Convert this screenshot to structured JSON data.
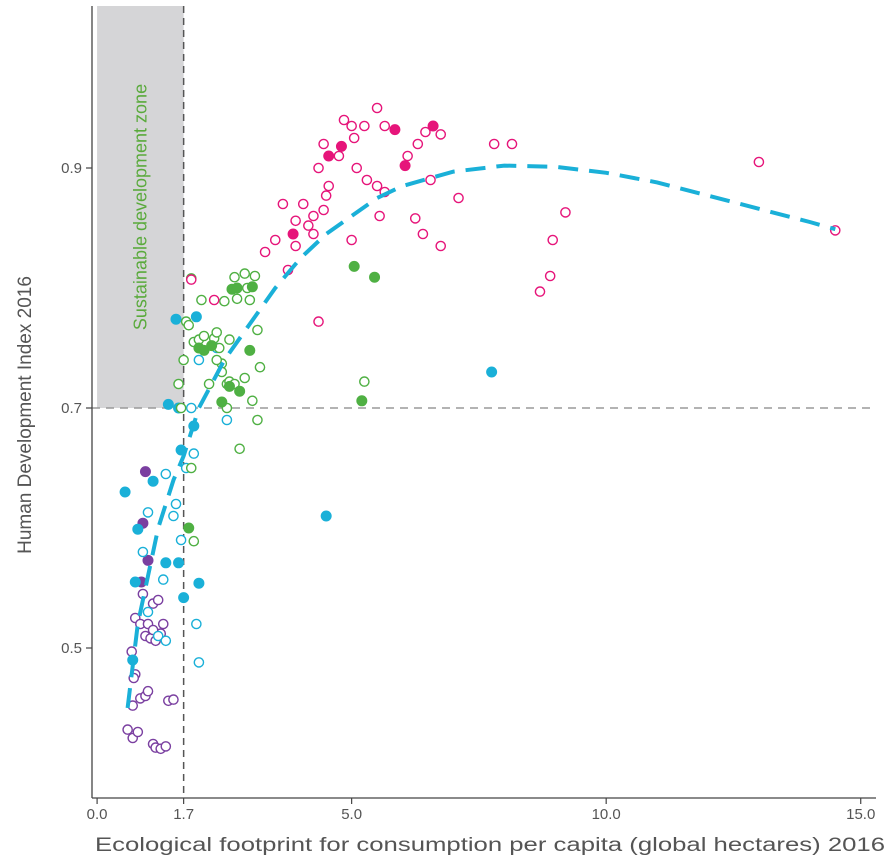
{
  "chart_data": {
    "type": "scatter",
    "title": "",
    "xlabel": "Ecological footprint for consumption per capita (global hectares) 2016",
    "ylabel": "Human Development Index 2016",
    "xlim": [
      -0.1,
      15.3
    ],
    "ylim": [
      0.375,
      1.035
    ],
    "x_ticks": [
      0.0,
      1.7,
      5.0,
      10.0,
      15.0
    ],
    "x_tick_labels": [
      "0.0",
      "1.7",
      "5.0",
      "10.0",
      "15.0"
    ],
    "y_ticks": [
      0.5,
      0.7,
      0.9
    ],
    "y_tick_labels": [
      "0.5",
      "0.7",
      "0.9"
    ],
    "grid": false,
    "legend": "none",
    "annotations": {
      "zone_label": "Sustainable development zone",
      "zone": {
        "x": [
          0.0,
          1.7
        ],
        "y": [
          0.7,
          1.035
        ]
      },
      "threshold_lines": {
        "x": 1.7,
        "y": 0.7
      }
    },
    "colors": {
      "purple": "#7a3fa0",
      "cyan": "#1ab0d8",
      "green": "#4fb043",
      "magenta": "#e6157a",
      "trend": "#1ab0d8",
      "zone_fill": "#d5d5d7",
      "zone_text": "#5aaa3c",
      "reference": "#9a9a9a",
      "axis": "#444444",
      "text": "#555555"
    },
    "series": [
      {
        "color": "purple",
        "filled": [
          [
            1.0,
            0.573
          ],
          [
            0.95,
            0.647
          ],
          [
            0.87,
            0.555
          ],
          [
            0.9,
            0.604
          ]
        ],
        "hollow": [
          [
            0.6,
            0.432
          ],
          [
            0.7,
            0.425
          ],
          [
            0.75,
            0.478
          ],
          [
            0.8,
            0.43
          ],
          [
            0.7,
            0.452
          ],
          [
            0.85,
            0.458
          ],
          [
            0.95,
            0.46
          ],
          [
            1.0,
            0.464
          ],
          [
            1.1,
            0.42
          ],
          [
            1.15,
            0.417
          ],
          [
            1.25,
            0.416
          ],
          [
            1.35,
            0.418
          ],
          [
            1.4,
            0.456
          ],
          [
            1.5,
            0.457
          ],
          [
            0.75,
            0.525
          ],
          [
            0.85,
            0.52
          ],
          [
            0.95,
            0.51
          ],
          [
            1.05,
            0.508
          ],
          [
            1.15,
            0.506
          ],
          [
            1.25,
            0.512
          ],
          [
            1.0,
            0.52
          ],
          [
            1.1,
            0.537
          ],
          [
            1.2,
            0.54
          ],
          [
            0.7,
            0.49
          ],
          [
            0.72,
            0.475
          ],
          [
            0.9,
            0.545
          ],
          [
            1.3,
            0.52
          ],
          [
            1.1,
            0.515
          ],
          [
            0.68,
            0.497
          ]
        ]
      },
      {
        "color": "cyan",
        "filled": [
          [
            0.55,
            0.63
          ],
          [
            0.75,
            0.555
          ],
          [
            0.8,
            0.599
          ],
          [
            1.1,
            0.639
          ],
          [
            1.35,
            0.571
          ],
          [
            1.6,
            0.571
          ],
          [
            1.7,
            0.542
          ],
          [
            2.0,
            0.554
          ],
          [
            1.4,
            0.703
          ],
          [
            1.6,
            0.7
          ],
          [
            1.9,
            0.685
          ],
          [
            1.55,
            0.774
          ],
          [
            1.95,
            0.776
          ],
          [
            1.65,
            0.665
          ],
          [
            4.5,
            0.61
          ],
          [
            7.75,
            0.73
          ],
          [
            0.7,
            0.49
          ]
        ],
        "hollow": [
          [
            0.9,
            0.58
          ],
          [
            1.0,
            0.613
          ],
          [
            1.3,
            0.557
          ],
          [
            1.35,
            0.645
          ],
          [
            1.55,
            0.62
          ],
          [
            1.65,
            0.59
          ],
          [
            1.75,
            0.65
          ],
          [
            1.85,
            0.7
          ],
          [
            1.9,
            0.662
          ],
          [
            2.0,
            0.74
          ],
          [
            2.35,
            0.75
          ],
          [
            1.95,
            0.52
          ],
          [
            2.0,
            0.488
          ],
          [
            2.55,
            0.69
          ],
          [
            1.2,
            0.51
          ],
          [
            1.35,
            0.506
          ],
          [
            1.0,
            0.53
          ],
          [
            1.5,
            0.61
          ]
        ]
      },
      {
        "color": "green",
        "filled": [
          [
            2.0,
            0.75
          ],
          [
            2.1,
            0.748
          ],
          [
            2.25,
            0.752
          ],
          [
            2.6,
            0.718
          ],
          [
            2.45,
            0.705
          ],
          [
            2.8,
            0.714
          ],
          [
            3.0,
            0.748
          ],
          [
            2.65,
            0.799
          ],
          [
            2.75,
            0.8
          ],
          [
            3.05,
            0.801
          ],
          [
            5.2,
            0.706
          ],
          [
            5.05,
            0.818
          ],
          [
            5.45,
            0.809
          ],
          [
            1.8,
            0.6
          ]
        ],
        "hollow": [
          [
            1.6,
            0.72
          ],
          [
            1.7,
            0.74
          ],
          [
            1.75,
            0.772
          ],
          [
            1.8,
            0.769
          ],
          [
            1.85,
            0.808
          ],
          [
            2.05,
            0.79
          ],
          [
            1.9,
            0.755
          ],
          [
            2.0,
            0.757
          ],
          [
            2.1,
            0.76
          ],
          [
            2.3,
            0.758
          ],
          [
            2.35,
            0.763
          ],
          [
            2.4,
            0.75
          ],
          [
            2.45,
            0.737
          ],
          [
            2.5,
            0.789
          ],
          [
            2.6,
            0.757
          ],
          [
            2.7,
            0.809
          ],
          [
            2.75,
            0.791
          ],
          [
            2.9,
            0.812
          ],
          [
            2.95,
            0.8
          ],
          [
            3.0,
            0.79
          ],
          [
            3.1,
            0.81
          ],
          [
            3.15,
            0.765
          ],
          [
            3.2,
            0.734
          ],
          [
            2.55,
            0.72
          ],
          [
            2.6,
            0.722
          ],
          [
            2.7,
            0.72
          ],
          [
            2.9,
            0.725
          ],
          [
            3.05,
            0.706
          ],
          [
            3.15,
            0.69
          ],
          [
            2.8,
            0.666
          ],
          [
            5.25,
            0.722
          ],
          [
            1.9,
            0.589
          ],
          [
            1.85,
            0.65
          ],
          [
            1.65,
            0.7
          ],
          [
            2.35,
            0.74
          ],
          [
            2.2,
            0.72
          ],
          [
            2.45,
            0.73
          ],
          [
            2.55,
            0.7
          ]
        ]
      },
      {
        "color": "magenta",
        "filled": [
          [
            3.85,
            0.845
          ],
          [
            4.55,
            0.91
          ],
          [
            4.8,
            0.918
          ],
          [
            5.85,
            0.932
          ],
          [
            6.05,
            0.902
          ],
          [
            6.6,
            0.935
          ]
        ],
        "hollow": [
          [
            1.85,
            0.807
          ],
          [
            2.3,
            0.79
          ],
          [
            3.3,
            0.83
          ],
          [
            3.5,
            0.84
          ],
          [
            3.65,
            0.87
          ],
          [
            3.75,
            0.815
          ],
          [
            3.9,
            0.835
          ],
          [
            4.05,
            0.87
          ],
          [
            3.9,
            0.856
          ],
          [
            4.15,
            0.852
          ],
          [
            4.25,
            0.86
          ],
          [
            4.45,
            0.865
          ],
          [
            4.5,
            0.877
          ],
          [
            4.55,
            0.885
          ],
          [
            4.35,
            0.772
          ],
          [
            4.25,
            0.845
          ],
          [
            4.35,
            0.9
          ],
          [
            4.45,
            0.92
          ],
          [
            4.75,
            0.91
          ],
          [
            4.85,
            0.94
          ],
          [
            5.0,
            0.935
          ],
          [
            5.05,
            0.925
          ],
          [
            5.25,
            0.935
          ],
          [
            5.1,
            0.9
          ],
          [
            5.3,
            0.89
          ],
          [
            5.5,
            0.95
          ],
          [
            5.65,
            0.935
          ],
          [
            5.5,
            0.885
          ],
          [
            5.65,
            0.88
          ],
          [
            5.55,
            0.86
          ],
          [
            6.1,
            0.91
          ],
          [
            6.3,
            0.92
          ],
          [
            6.45,
            0.93
          ],
          [
            6.75,
            0.928
          ],
          [
            6.55,
            0.89
          ],
          [
            6.25,
            0.858
          ],
          [
            6.4,
            0.845
          ],
          [
            6.75,
            0.835
          ],
          [
            7.1,
            0.875
          ],
          [
            7.8,
            0.92
          ],
          [
            8.15,
            0.92
          ],
          [
            8.7,
            0.797
          ],
          [
            8.9,
            0.81
          ],
          [
            8.95,
            0.84
          ],
          [
            9.2,
            0.863
          ],
          [
            13.0,
            0.905
          ],
          [
            14.5,
            0.848
          ],
          [
            5.0,
            0.84
          ]
        ]
      }
    ],
    "trend": {
      "style": "dashed",
      "points": [
        [
          0.6,
          0.45
        ],
        [
          0.8,
          0.52
        ],
        [
          1.0,
          0.56
        ],
        [
          1.2,
          0.6
        ],
        [
          1.5,
          0.64
        ],
        [
          1.7,
          0.66
        ],
        [
          2.0,
          0.7
        ],
        [
          2.5,
          0.74
        ],
        [
          3.0,
          0.77
        ],
        [
          3.5,
          0.8
        ],
        [
          4.0,
          0.825
        ],
        [
          4.5,
          0.845
        ],
        [
          5.0,
          0.86
        ],
        [
          5.5,
          0.875
        ],
        [
          6.0,
          0.885
        ],
        [
          7.0,
          0.897
        ],
        [
          8.0,
          0.902
        ],
        [
          9.0,
          0.901
        ],
        [
          10.0,
          0.896
        ],
        [
          11.0,
          0.888
        ],
        [
          12.0,
          0.877
        ],
        [
          13.0,
          0.866
        ],
        [
          14.0,
          0.855
        ],
        [
          14.5,
          0.849
        ]
      ]
    }
  }
}
